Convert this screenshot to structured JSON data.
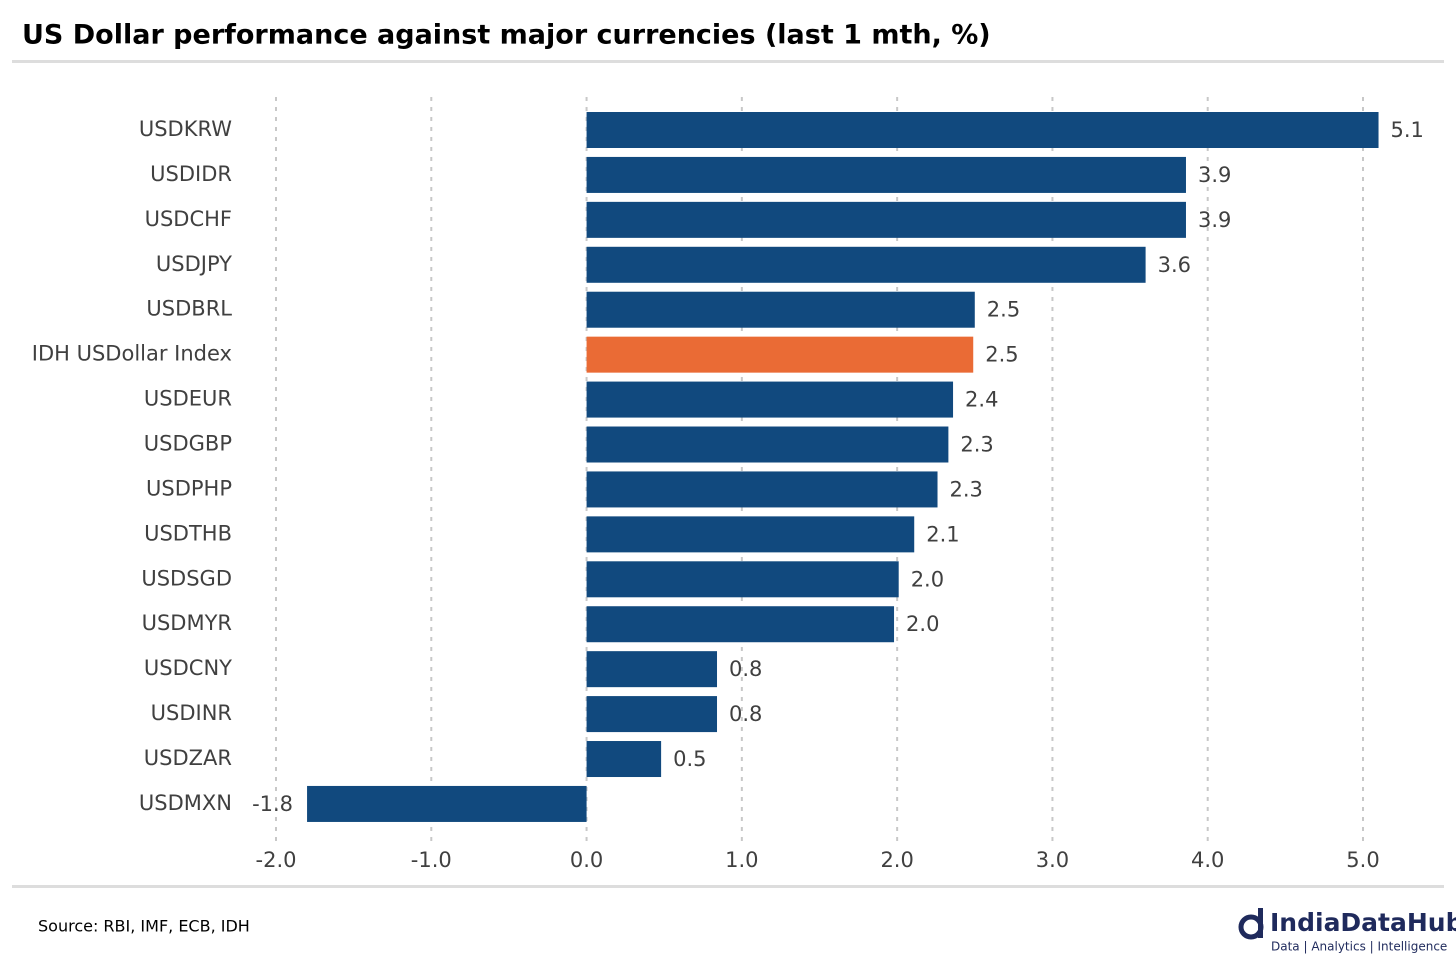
{
  "chart_data": {
    "type": "bar",
    "orientation": "horizontal",
    "title": "US Dollar performance against major currencies (last 1 mth, %)",
    "categories": [
      "USDKRW",
      "USDIDR",
      "USDCHF",
      "USDJPY",
      "USDBRL",
      "IDH USDollar Index",
      "USDEUR",
      "USDGBP",
      "USDPHP",
      "USDTHB",
      "USDSGD",
      "USDMYR",
      "USDCNY",
      "USDINR",
      "USDZAR",
      "USDMXN"
    ],
    "values": [
      5.1,
      3.86,
      3.86,
      3.6,
      2.5,
      2.49,
      2.36,
      2.33,
      2.26,
      2.11,
      2.01,
      1.98,
      0.84,
      0.84,
      0.48,
      -1.8
    ],
    "value_labels": [
      "5.1",
      "3.9",
      "3.9",
      "3.6",
      "2.5",
      "2.5",
      "2.4",
      "2.3",
      "2.3",
      "2.1",
      "2.0",
      "2.0",
      "0.8",
      "0.8",
      "0.5",
      "-1.8"
    ],
    "colors": [
      "#11497e",
      "#11497e",
      "#11497e",
      "#11497e",
      "#11497e",
      "#ea6b35",
      "#11497e",
      "#11497e",
      "#11497e",
      "#11497e",
      "#11497e",
      "#11497e",
      "#11497e",
      "#11497e",
      "#11497e",
      "#11497e"
    ],
    "xlim": [
      -2,
      5
    ],
    "xticks": [
      {
        "value": -2,
        "label": "-2.0"
      },
      {
        "value": -1,
        "label": "-1.0"
      },
      {
        "value": 0,
        "label": "0.0"
      },
      {
        "value": 1,
        "label": "1.0"
      },
      {
        "value": 2,
        "label": "2.0"
      },
      {
        "value": 3,
        "label": "3.0"
      },
      {
        "value": 4,
        "label": "4.0"
      },
      {
        "value": 5,
        "label": "5.0"
      }
    ],
    "grid": true
  },
  "footer": {
    "source": "Source: RBI, IMF, ECB, IDH"
  },
  "logo": {
    "name": "IndiaDataHub",
    "tagline": "Data | Analytics | Intelligence"
  }
}
